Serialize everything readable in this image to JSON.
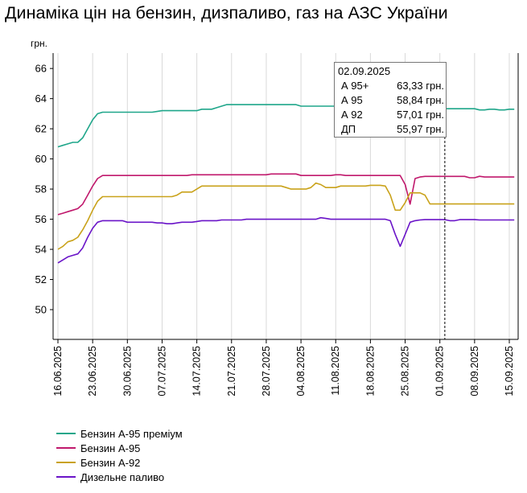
{
  "chart_data": {
    "type": "line",
    "title": "Динаміка цін на бензин, дизпаливо, газ на АЗС України",
    "ylabel": "грн.",
    "ylim": [
      48,
      67
    ],
    "yticks": [
      50,
      52,
      54,
      56,
      58,
      60,
      62,
      64,
      66
    ],
    "xticks": [
      "16.06.2025",
      "23.06.2025",
      "30.06.2025",
      "07.07.2025",
      "14.07.2025",
      "21.07.2025",
      "28.07.2025",
      "04.08.2025",
      "11.08.2025",
      "18.08.2025",
      "25.08.2025",
      "01.09.2025",
      "08.09.2025",
      "15.09.2025"
    ],
    "grid": "vertical",
    "legend_position": "bottom-left",
    "x": [
      "16.06",
      "17.06",
      "18.06",
      "19.06",
      "20.06",
      "21.06",
      "22.06",
      "23.06",
      "24.06",
      "25.06",
      "26.06",
      "27.06",
      "28.06",
      "29.06",
      "30.06",
      "01.07",
      "02.07",
      "03.07",
      "04.07",
      "05.07",
      "06.07",
      "07.07",
      "08.07",
      "09.07",
      "10.07",
      "11.07",
      "12.07",
      "13.07",
      "14.07",
      "15.07",
      "16.07",
      "17.07",
      "18.07",
      "19.07",
      "20.07",
      "21.07",
      "22.07",
      "23.07",
      "24.07",
      "25.07",
      "26.07",
      "27.07",
      "28.07",
      "29.07",
      "30.07",
      "31.07",
      "01.08",
      "02.08",
      "03.08",
      "04.08",
      "05.08",
      "06.08",
      "07.08",
      "08.08",
      "09.08",
      "10.08",
      "11.08",
      "12.08",
      "13.08",
      "14.08",
      "15.08",
      "16.08",
      "17.08",
      "18.08",
      "19.08",
      "20.08",
      "21.08",
      "22.08",
      "23.08",
      "24.08",
      "25.08",
      "26.08",
      "27.08",
      "28.08",
      "29.08",
      "30.08",
      "31.08",
      "01.09",
      "02.09",
      "03.09",
      "04.09",
      "05.09",
      "06.09",
      "07.09",
      "08.09",
      "09.09",
      "10.09",
      "11.09",
      "12.09",
      "13.09",
      "14.09",
      "15.09",
      "16.09"
    ],
    "series": [
      {
        "name": "Бензин А-95 преміум",
        "color": "#1fa68a",
        "values": [
          60.8,
          60.9,
          61.0,
          61.1,
          61.1,
          61.4,
          62.0,
          62.6,
          63.0,
          63.1,
          63.1,
          63.1,
          63.1,
          63.1,
          63.1,
          63.1,
          63.1,
          63.1,
          63.1,
          63.1,
          63.15,
          63.2,
          63.2,
          63.2,
          63.2,
          63.2,
          63.2,
          63.2,
          63.2,
          63.3,
          63.3,
          63.3,
          63.4,
          63.5,
          63.6,
          63.6,
          63.6,
          63.6,
          63.6,
          63.6,
          63.6,
          63.6,
          63.6,
          63.6,
          63.6,
          63.6,
          63.6,
          63.6,
          63.6,
          63.5,
          63.5,
          63.5,
          63.5,
          63.5,
          63.5,
          63.5,
          63.5,
          63.5,
          63.5,
          63.5,
          63.5,
          63.5,
          63.5,
          63.5,
          63.5,
          63.5,
          63.5,
          63.5,
          63.5,
          63.5,
          63.5,
          63.4,
          63.3,
          63.3,
          63.3,
          63.33,
          63.33,
          63.33,
          63.33,
          63.33,
          63.33,
          63.33,
          63.33,
          63.33,
          63.33,
          63.25,
          63.25,
          63.3,
          63.3,
          63.25,
          63.25,
          63.3,
          63.3
        ]
      },
      {
        "name": "Бензин А-95",
        "color": "#c0186c",
        "values": [
          56.3,
          56.4,
          56.5,
          56.6,
          56.7,
          57.0,
          57.6,
          58.2,
          58.7,
          58.9,
          58.9,
          58.9,
          58.9,
          58.9,
          58.9,
          58.9,
          58.9,
          58.9,
          58.9,
          58.9,
          58.9,
          58.9,
          58.9,
          58.9,
          58.9,
          58.9,
          58.9,
          58.95,
          58.95,
          58.95,
          58.95,
          58.95,
          58.95,
          58.95,
          58.95,
          58.95,
          58.95,
          58.95,
          58.95,
          58.95,
          58.95,
          58.95,
          58.95,
          59.0,
          59.0,
          59.0,
          59.0,
          59.0,
          59.0,
          58.9,
          58.9,
          58.9,
          58.9,
          58.9,
          58.9,
          58.9,
          58.95,
          58.95,
          58.9,
          58.9,
          58.9,
          58.9,
          58.9,
          58.9,
          58.9,
          58.9,
          58.9,
          58.9,
          58.9,
          58.9,
          58.3,
          57.0,
          58.7,
          58.8,
          58.84,
          58.84,
          58.84,
          58.84,
          58.84,
          58.84,
          58.84,
          58.84,
          58.84,
          58.75,
          58.75,
          58.85,
          58.8,
          58.8,
          58.8,
          58.8,
          58.8,
          58.8,
          58.8
        ]
      },
      {
        "name": "Бензин А-92",
        "color": "#c9a21a",
        "values": [
          54.0,
          54.2,
          54.5,
          54.6,
          54.8,
          55.3,
          55.9,
          56.6,
          57.2,
          57.5,
          57.5,
          57.5,
          57.5,
          57.5,
          57.5,
          57.5,
          57.5,
          57.5,
          57.5,
          57.5,
          57.5,
          57.5,
          57.5,
          57.5,
          57.6,
          57.8,
          57.8,
          57.8,
          58.0,
          58.2,
          58.2,
          58.2,
          58.2,
          58.2,
          58.2,
          58.2,
          58.2,
          58.2,
          58.2,
          58.2,
          58.2,
          58.2,
          58.2,
          58.2,
          58.2,
          58.2,
          58.1,
          58.0,
          58.0,
          58.0,
          58.0,
          58.1,
          58.4,
          58.3,
          58.1,
          58.1,
          58.1,
          58.2,
          58.2,
          58.2,
          58.2,
          58.2,
          58.2,
          58.25,
          58.25,
          58.25,
          58.2,
          57.6,
          56.6,
          56.6,
          57.1,
          57.75,
          57.75,
          57.75,
          57.6,
          57.01,
          57.01,
          57.01,
          57.01,
          57.01,
          57.01,
          57.01,
          57.01,
          57.01,
          57.01,
          57.01,
          57.01,
          57.01,
          57.01,
          57.01,
          57.01,
          57.01,
          57.01
        ]
      },
      {
        "name": "Дизельне паливо",
        "color": "#6a14c8",
        "values": [
          53.1,
          53.3,
          53.5,
          53.6,
          53.7,
          54.1,
          54.8,
          55.4,
          55.8,
          55.9,
          55.9,
          55.9,
          55.9,
          55.9,
          55.8,
          55.8,
          55.8,
          55.8,
          55.8,
          55.8,
          55.75,
          55.75,
          55.7,
          55.7,
          55.75,
          55.8,
          55.8,
          55.8,
          55.85,
          55.9,
          55.9,
          55.9,
          55.9,
          55.95,
          55.95,
          55.95,
          55.95,
          55.95,
          56.0,
          56.0,
          56.0,
          56.0,
          56.0,
          56.0,
          56.0,
          56.0,
          56.0,
          56.0,
          56.0,
          56.0,
          56.0,
          56.0,
          56.0,
          56.1,
          56.05,
          56.0,
          56.0,
          56.0,
          56.0,
          56.0,
          56.0,
          56.0,
          56.0,
          56.0,
          56.0,
          56.0,
          56.0,
          55.9,
          55.0,
          54.2,
          55.0,
          55.8,
          55.9,
          55.95,
          55.97,
          55.97,
          55.97,
          55.97,
          55.97,
          55.9,
          55.9,
          55.97,
          55.97,
          55.97,
          55.97,
          55.95,
          55.95,
          55.95,
          55.95,
          55.95,
          55.95,
          55.95,
          55.95
        ]
      }
    ],
    "annotation": {
      "date": "02.09.2025",
      "index": 78,
      "rows": [
        {
          "label": "А 95+",
          "value": "63,33 грн."
        },
        {
          "label": "А 95",
          "value": "58,84 грн."
        },
        {
          "label": "А 92",
          "value": "57,01 грн."
        },
        {
          "label": "ДП",
          "value": "55,97 грн."
        }
      ]
    }
  }
}
